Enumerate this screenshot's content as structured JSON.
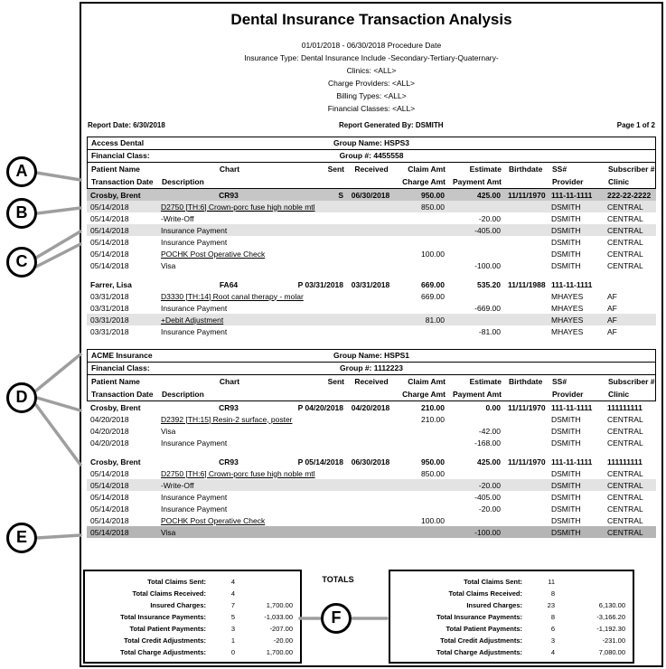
{
  "page": {
    "title": "Dental Insurance Transaction Analysis",
    "subtitles": [
      "01/01/2018 - 06/30/2018 Procedure Date",
      "Insurance Type: Dental Insurance Include -Secondary-Tertiary-Quaternary-",
      "Clinics: <ALL>",
      "Charge Providers: <ALL>",
      "Billing Types: <ALL>",
      "Financial Classes: <ALL>"
    ],
    "meta": {
      "report_date": "Report Date: 6/30/2018",
      "generated_by": "Report Generated By: DSMITH",
      "page_label": "Page 1 of 2"
    }
  },
  "table_headers": {
    "row1": [
      "Patient Name",
      "Chart",
      "Sent",
      "Received",
      "Claim Amt",
      "Estimate",
      "Birthdate",
      "SS#",
      "Subscriber #"
    ],
    "row2": [
      "Transaction Date",
      "Description",
      "",
      "",
      "Charge Amt",
      "Payment Amt",
      "",
      "Provider",
      "Clinic"
    ]
  },
  "sections": [
    {
      "carrier": "Access Dental",
      "group_name": "Group Name: HSPS3",
      "financial_class_label": "Financial Class:",
      "group_number": "Group #: 4455558",
      "rows": [
        {
          "type": "patient",
          "shade": "dark",
          "name": "Crosby, Brent",
          "chart": "CR93",
          "sent": "S",
          "received": "06/30/2018",
          "claim": "950.00",
          "estimate": "425.00",
          "birthdate": "11/11/1970",
          "ss": "111-11-1111",
          "subscriber": "222-22-2222"
        },
        {
          "type": "txn",
          "shade": "light",
          "underline": true,
          "date": "05/14/2018",
          "desc": "D2750 [TH:6] Crown-porc fuse high noble mtl",
          "charge": "850.00",
          "payment": "",
          "provider": "DSMITH",
          "clinic": "CENTRAL"
        },
        {
          "type": "txn",
          "date": "05/14/2018",
          "desc": "-Write-Off",
          "charge": "",
          "payment": "-20.00",
          "provider": "DSMITH",
          "clinic": "CENTRAL"
        },
        {
          "type": "txn",
          "shade": "light",
          "date": "05/14/2018",
          "desc": "Insurance Payment",
          "charge": "",
          "payment": "-405.00",
          "provider": "DSMITH",
          "clinic": "CENTRAL"
        },
        {
          "type": "txn",
          "date": "05/14/2018",
          "desc": "Insurance Payment",
          "charge": "",
          "payment": "",
          "provider": "DSMITH",
          "clinic": "CENTRAL"
        },
        {
          "type": "txn",
          "underline": true,
          "date": "05/14/2018",
          "desc": "POCHK Post Operative Check",
          "charge": "100.00",
          "payment": "",
          "provider": "DSMITH",
          "clinic": "CENTRAL"
        },
        {
          "type": "txn",
          "date": "05/14/2018",
          "desc": "Visa",
          "charge": "",
          "payment": "-100.00",
          "provider": "DSMITH",
          "clinic": "CENTRAL"
        },
        {
          "type": "spacer"
        },
        {
          "type": "patient",
          "name": "Farrer, Lisa",
          "chart": "FA64",
          "sent": "P 03/31/2018",
          "received": "03/31/2018",
          "claim": "669.00",
          "estimate": "535.20",
          "birthdate": "11/11/1988",
          "ss": "111-11-1111",
          "subscriber": ""
        },
        {
          "type": "txn",
          "underline": true,
          "date": "03/31/2018",
          "desc": "D3330 [TH:14] Root canal therapy - molar",
          "charge": "669.00",
          "payment": "",
          "provider": "MHAYES",
          "clinic": "AF"
        },
        {
          "type": "txn",
          "date": "03/31/2018",
          "desc": "Insurance Payment",
          "charge": "",
          "payment": "-669.00",
          "provider": "MHAYES",
          "clinic": "AF"
        },
        {
          "type": "txn",
          "shade": "light",
          "underline": true,
          "date": "03/31/2018",
          "desc": "+Debit Adjustment",
          "charge": "81.00",
          "payment": "",
          "provider": "MHAYES",
          "clinic": "AF"
        },
        {
          "type": "txn",
          "date": "03/31/2018",
          "desc": "Insurance Payment",
          "charge": "",
          "payment": "-81.00",
          "provider": "MHAYES",
          "clinic": "AF"
        }
      ]
    },
    {
      "carrier": "ACME Insurance",
      "group_name": "Group Name: HSPS1",
      "financial_class_label": "Financial Class:",
      "group_number": "Group #: 1112223",
      "rows": [
        {
          "type": "patient",
          "name": "Crosby, Brent",
          "chart": "CR93",
          "sent": "P 04/20/2018",
          "received": "04/20/2018",
          "claim": "210.00",
          "estimate": "0.00",
          "birthdate": "11/11/1970",
          "ss": "111-11-1111",
          "subscriber": "111111111"
        },
        {
          "type": "txn",
          "underline": true,
          "date": "04/20/2018",
          "desc": "D2392 [TH:15] Resin-2 surface, poster",
          "charge": "210.00",
          "payment": "",
          "provider": "DSMITH",
          "clinic": "CENTRAL"
        },
        {
          "type": "txn",
          "date": "04/20/2018",
          "desc": "Visa",
          "charge": "",
          "payment": "-42.00",
          "provider": "DSMITH",
          "clinic": "CENTRAL"
        },
        {
          "type": "txn",
          "date": "04/20/2018",
          "desc": "Insurance Payment",
          "charge": "",
          "payment": "-168.00",
          "provider": "DSMITH",
          "clinic": "CENTRAL"
        },
        {
          "type": "spacer"
        },
        {
          "type": "patient",
          "name": "Crosby, Brent",
          "chart": "CR93",
          "sent": "P 05/14/2018",
          "received": "06/30/2018",
          "claim": "950.00",
          "estimate": "425.00",
          "birthdate": "11/11/1970",
          "ss": "111-11-1111",
          "subscriber": "111111111"
        },
        {
          "type": "txn",
          "underline": true,
          "date": "05/14/2018",
          "desc": "D2750 [TH:6] Crown-porc fuse high noble mtl",
          "charge": "850.00",
          "payment": "",
          "provider": "DSMITH",
          "clinic": "CENTRAL"
        },
        {
          "type": "txn",
          "shade": "light",
          "date": "05/14/2018",
          "desc": "-Write-Off",
          "charge": "",
          "payment": "-20.00",
          "provider": "DSMITH",
          "clinic": "CENTRAL"
        },
        {
          "type": "txn",
          "date": "05/14/2018",
          "desc": "Insurance Payment",
          "charge": "",
          "payment": "-405.00",
          "provider": "DSMITH",
          "clinic": "CENTRAL"
        },
        {
          "type": "txn",
          "date": "05/14/2018",
          "desc": "Insurance Payment",
          "charge": "",
          "payment": "-20.00",
          "provider": "DSMITH",
          "clinic": "CENTRAL"
        },
        {
          "type": "txn",
          "underline": true,
          "date": "05/14/2018",
          "desc": "POCHK Post Operative Check",
          "charge": "100.00",
          "payment": "",
          "provider": "DSMITH",
          "clinic": "CENTRAL"
        },
        {
          "type": "txn",
          "shade": "darker",
          "date": "05/14/2018",
          "desc": "Visa",
          "charge": "",
          "payment": "-100.00",
          "provider": "DSMITH",
          "clinic": "CENTRAL"
        }
      ]
    }
  ],
  "totals": {
    "heading": "TOTALS",
    "left": {
      "rows": [
        {
          "label": "Total Claims Sent:",
          "count": "4",
          "amount": ""
        },
        {
          "label": "Total Claims Received:",
          "count": "4",
          "amount": ""
        },
        {
          "label": "Insured Charges:",
          "count": "7",
          "amount": "1,700.00"
        },
        {
          "label": "Total Insurance Payments:",
          "count": "5",
          "amount": "-1,033.00"
        },
        {
          "label": "Total Patient Payments:",
          "count": "3",
          "amount": "-207.00"
        },
        {
          "label": "Total Credit Adjustments:",
          "count": "1",
          "amount": "-20.00"
        },
        {
          "label": "Total Charge Adjustments:",
          "count": "0",
          "amount": "1,700.00"
        }
      ]
    },
    "right": {
      "rows": [
        {
          "label": "Total Claims Sent:",
          "count": "11",
          "amount": ""
        },
        {
          "label": "Total Claims Received:",
          "count": "8",
          "amount": ""
        },
        {
          "label": "Insured Charges:",
          "count": "23",
          "amount": "6,130.00"
        },
        {
          "label": "Total Insurance Payments:",
          "count": "8",
          "amount": "-3,166.20"
        },
        {
          "label": "Total Patient Payments:",
          "count": "6",
          "amount": "-1,192.30"
        },
        {
          "label": "Total Credit Adjustments:",
          "count": "3",
          "amount": "-231.00"
        },
        {
          "label": "Total Charge Adjustments:",
          "count": "4",
          "amount": "7,080.00"
        }
      ]
    }
  },
  "callouts": {
    "letters": [
      "A",
      "B",
      "C",
      "D",
      "E",
      "F"
    ]
  }
}
